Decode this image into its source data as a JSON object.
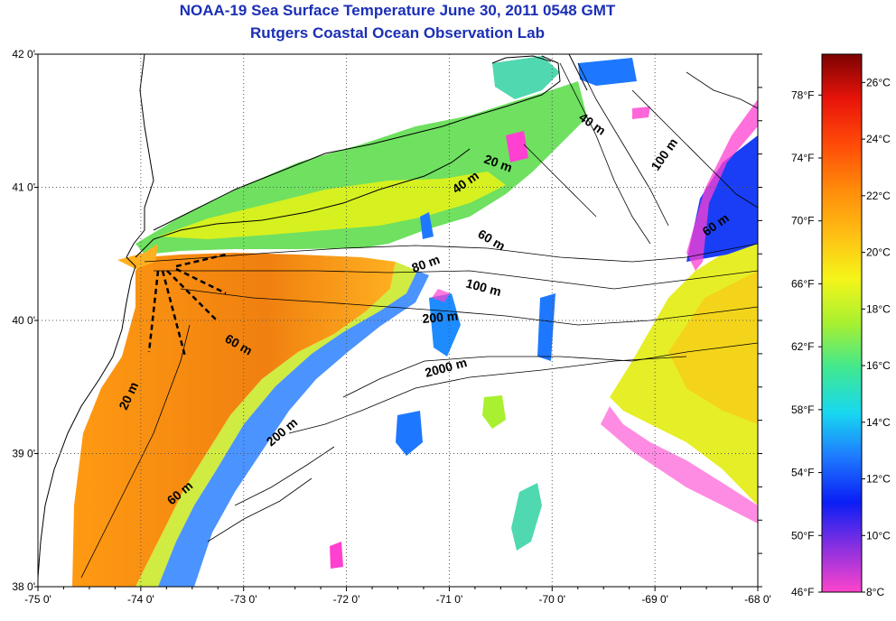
{
  "title": "NOAA-19 Sea Surface Temperature June 30, 2011 0548 GMT",
  "subtitle": "Rutgers Coastal Ocean Observation Lab",
  "axes": {
    "lon_ticks": [
      "-75 0'",
      "-74 0'",
      "-73 0'",
      "-72 0'",
      "-71 0'",
      "-70 0'",
      "-69 0'",
      "-68 0'"
    ],
    "lat_ticks": [
      "42 0'",
      "41 0'",
      "40 0'",
      "39 0'",
      "38 0'"
    ],
    "lon_range": [
      -75,
      -68
    ],
    "lat_range": [
      38,
      42
    ],
    "grid": "dotted"
  },
  "contour_labels": [
    "40 m",
    "100 m",
    "20 m",
    "40 m",
    "60 m",
    "60 m",
    "80 m",
    "100 m",
    "200 m",
    "60 m",
    "20 m",
    "2000 m",
    "200 m",
    "60 m"
  ],
  "colorbar": {
    "fahrenheit": [
      "78°F",
      "74°F",
      "70°F",
      "66°F",
      "62°F",
      "58°F",
      "54°F",
      "50°F",
      "46°F"
    ],
    "celsius": [
      "26°C",
      "24°C",
      "22°C",
      "20°C",
      "18°C",
      "16°C",
      "14°C",
      "12°C",
      "10°C",
      "8°C"
    ],
    "range_c": [
      8,
      27
    ],
    "colors": [
      "#ff44cc",
      "#8a30e0",
      "#0a1ef5",
      "#1e78ff",
      "#18d8f0",
      "#40e890",
      "#a8f030",
      "#f5f519",
      "#ffbd14",
      "#ff8a0a",
      "#ff4a08",
      "#e8140a",
      "#7c0202"
    ]
  }
}
